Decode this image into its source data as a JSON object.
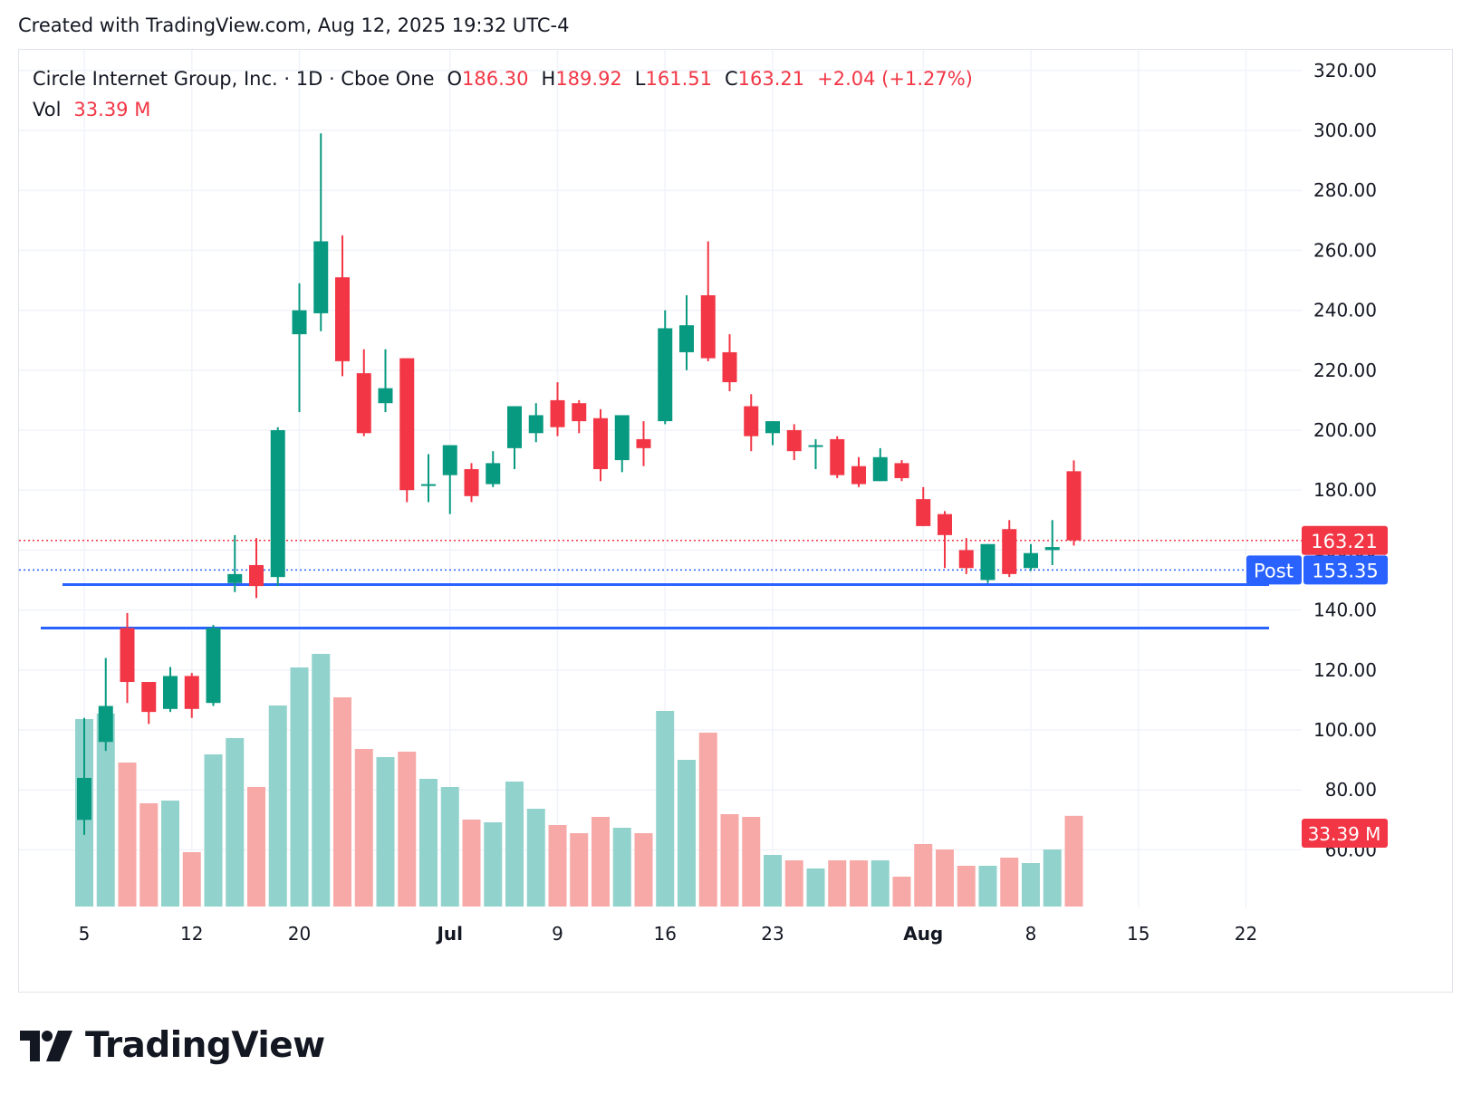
{
  "header": {
    "created_text": "Created with TradingView.com, Aug 12, 2025 19:32 UTC-4"
  },
  "legend": {
    "symbol": "Circle Internet Group, Inc. · 1D · Cboe One",
    "o_label": "O",
    "o_value": "186.30",
    "h_label": "H",
    "h_value": "189.92",
    "l_label": "L",
    "l_value": "161.51",
    "c_label": "C",
    "c_value": "163.21",
    "change": "+2.04 (+1.27%)",
    "vol_label": "Vol",
    "vol_value": "33.39 M"
  },
  "badges": {
    "last_price": "163.21",
    "post_label": "Post",
    "post_price": "153.35",
    "volume": "33.39 M"
  },
  "colors": {
    "up": "#089981",
    "down": "#f23645",
    "vol_up": "#92d2cc",
    "vol_down": "#f7a9a7",
    "hline": "#2962ff",
    "post": "#2962ff",
    "grid": "#f0f3fa"
  },
  "brand": {
    "name": "TradingView"
  },
  "chart_data": {
    "type": "candlestick",
    "price_axis": {
      "min": 60,
      "max": 320,
      "ticks": [
        "320.00",
        "300.00",
        "280.00",
        "260.00",
        "240.00",
        "220.00",
        "200.00",
        "180.00",
        "160.00",
        "140.00",
        "120.00",
        "100.00",
        "80.00",
        "60.00"
      ]
    },
    "time_axis": [
      {
        "label": "5",
        "i": 0
      },
      {
        "label": "12",
        "i": 5
      },
      {
        "label": "20",
        "i": 10
      },
      {
        "label": "Jul",
        "i": 17,
        "bold": true
      },
      {
        "label": "9",
        "i": 22
      },
      {
        "label": "16",
        "i": 27
      },
      {
        "label": "23",
        "i": 32
      },
      {
        "label": "Aug",
        "i": 39,
        "bold": true
      },
      {
        "label": "8",
        "i": 44
      },
      {
        "label": "15",
        "i": 49
      },
      {
        "label": "22",
        "i": 54
      }
    ],
    "last_price": 163.21,
    "post_price": 153.35,
    "support_lines": [
      148.5,
      134
    ],
    "candles": [
      {
        "o": 70,
        "h": 104,
        "l": 65,
        "c": 84,
        "v": 69
      },
      {
        "o": 96,
        "h": 124,
        "l": 93,
        "c": 108,
        "v": 71
      },
      {
        "o": 134,
        "h": 139,
        "l": 109,
        "c": 116,
        "v": 53
      },
      {
        "o": 116,
        "h": 116,
        "l": 102,
        "c": 106,
        "v": 38
      },
      {
        "o": 107,
        "h": 121,
        "l": 106,
        "c": 118,
        "v": 39
      },
      {
        "o": 118,
        "h": 119,
        "l": 104,
        "c": 107,
        "v": 20
      },
      {
        "o": 109,
        "h": 135,
        "l": 108,
        "c": 134,
        "v": 56
      },
      {
        "o": 149,
        "h": 165,
        "l": 146,
        "c": 152,
        "v": 62
      },
      {
        "o": 155,
        "h": 164,
        "l": 144,
        "c": 148,
        "v": 44
      },
      {
        "o": 151,
        "h": 201,
        "l": 148,
        "c": 200,
        "v": 74
      },
      {
        "o": 232,
        "h": 249,
        "l": 206,
        "c": 240,
        "v": 88
      },
      {
        "o": 239,
        "h": 299,
        "l": 233,
        "c": 263,
        "v": 93
      },
      {
        "o": 251,
        "h": 265,
        "l": 218,
        "c": 223,
        "v": 77
      },
      {
        "o": 219,
        "h": 227,
        "l": 198,
        "c": 199,
        "v": 58
      },
      {
        "o": 209,
        "h": 227,
        "l": 206,
        "c": 214,
        "v": 55
      },
      {
        "o": 224,
        "h": 224,
        "l": 176,
        "c": 180,
        "v": 57
      },
      {
        "o": 182,
        "h": 192,
        "l": 176,
        "c": 182,
        "v": 47
      },
      {
        "o": 185,
        "h": 194,
        "l": 172,
        "c": 195,
        "v": 44
      },
      {
        "o": 187,
        "h": 189,
        "l": 176,
        "c": 178,
        "v": 32
      },
      {
        "o": 182,
        "h": 193,
        "l": 181,
        "c": 189,
        "v": 31
      },
      {
        "o": 194,
        "h": 208,
        "l": 187,
        "c": 208,
        "v": 46
      },
      {
        "o": 199,
        "h": 209,
        "l": 196,
        "c": 205,
        "v": 36
      },
      {
        "o": 210,
        "h": 216,
        "l": 198,
        "c": 201,
        "v": 30
      },
      {
        "o": 209,
        "h": 210,
        "l": 199,
        "c": 203,
        "v": 27
      },
      {
        "o": 204,
        "h": 207,
        "l": 183,
        "c": 187,
        "v": 33
      },
      {
        "o": 190,
        "h": 205,
        "l": 186,
        "c": 205,
        "v": 29
      },
      {
        "o": 197,
        "h": 203,
        "l": 188,
        "c": 194,
        "v": 27
      },
      {
        "o": 203,
        "h": 240,
        "l": 202,
        "c": 234,
        "v": 72
      },
      {
        "o": 226,
        "h": 245,
        "l": 220,
        "c": 235,
        "v": 54
      },
      {
        "o": 245,
        "h": 263,
        "l": 223,
        "c": 224,
        "v": 64
      },
      {
        "o": 226,
        "h": 232,
        "l": 213,
        "c": 216,
        "v": 34
      },
      {
        "o": 208,
        "h": 212,
        "l": 193,
        "c": 198,
        "v": 33
      },
      {
        "o": 199,
        "h": 203,
        "l": 195,
        "c": 203,
        "v": 19
      },
      {
        "o": 200,
        "h": 202,
        "l": 190,
        "c": 193,
        "v": 17
      },
      {
        "o": 195,
        "h": 197,
        "l": 187,
        "c": 195,
        "v": 14
      },
      {
        "o": 197,
        "h": 198,
        "l": 184,
        "c": 185,
        "v": 17
      },
      {
        "o": 188,
        "h": 191,
        "l": 181,
        "c": 182,
        "v": 17
      },
      {
        "o": 183,
        "h": 194,
        "l": 183,
        "c": 191,
        "v": 17
      },
      {
        "o": 189,
        "h": 190,
        "l": 183,
        "c": 184,
        "v": 11
      },
      {
        "o": 177,
        "h": 181,
        "l": 168,
        "c": 168,
        "v": 23
      },
      {
        "o": 172,
        "h": 173,
        "l": 154,
        "c": 165,
        "v": 21
      },
      {
        "o": 160,
        "h": 164,
        "l": 152,
        "c": 154,
        "v": 15
      },
      {
        "o": 150,
        "h": 162,
        "l": 149,
        "c": 162,
        "v": 15
      },
      {
        "o": 167,
        "h": 170,
        "l": 151,
        "c": 152,
        "v": 18
      },
      {
        "o": 154,
        "h": 162,
        "l": 153,
        "c": 159,
        "v": 16
      },
      {
        "o": 160,
        "h": 170,
        "l": 155,
        "c": 161,
        "v": 21
      },
      {
        "o": 186.3,
        "h": 189.92,
        "l": 161.51,
        "c": 163.21,
        "v": 33.39
      }
    ]
  }
}
